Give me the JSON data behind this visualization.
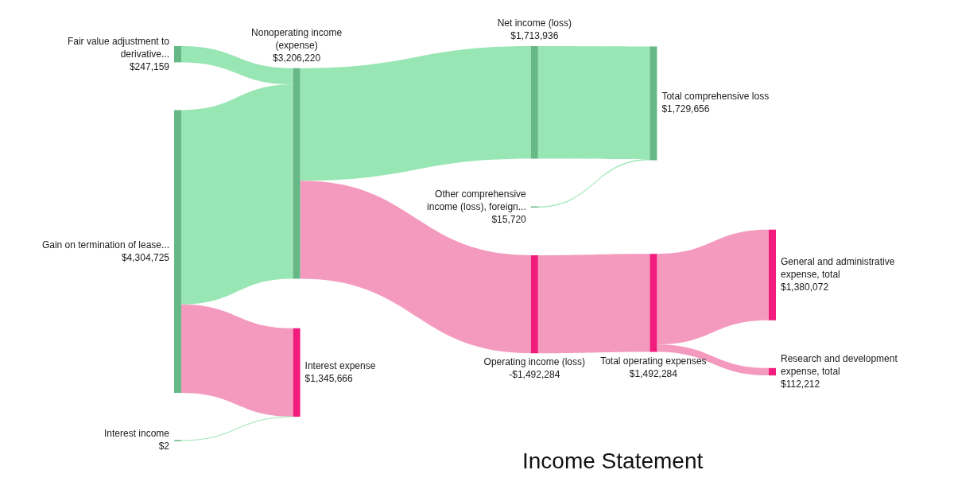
{
  "chart_data": {
    "type": "other",
    "title": "Income Statement",
    "categories": [
      "Fair value adjustment to derivative...",
      "Gain on termination of lease...",
      "Interest income",
      "Nonoperating income (expense)",
      "Interest expense",
      "Net income (loss)",
      "Other comprehensive income (loss), foreign...",
      "Operating income (loss)",
      "Total comprehensive loss",
      "Total operating expenses",
      "General and administrative expense, total",
      "Research and development expense, total"
    ],
    "values": [
      247159,
      4304725,
      2,
      3206220,
      1345666,
      1713936,
      15720,
      -1492284,
      1729656,
      1492284,
      1380072,
      112212
    ],
    "value_labels": [
      "$247,159",
      "$4,304,725",
      "$2",
      "$3,206,220",
      "$1,345,666",
      "$1,713,936",
      "$15,720",
      "-$1,492,284",
      "$1,729,656",
      "$1,492,284",
      "$1,380,072",
      "$112,212"
    ],
    "colors": [
      "#66b886",
      "#66b886",
      "#66b886",
      "#66b886",
      "#f21c7c",
      "#66b886",
      "#66b886",
      "#f21c7c",
      "#66b886",
      "#f21c7c",
      "#f21c7c",
      "#f21c7c"
    ],
    "series": [
      {
        "colors": [
          null,
          null,
          null,
          "#98e6b3",
          null,
          null,
          null,
          null,
          null,
          null,
          null,
          null
        ],
        "values": [
          null,
          null,
          null,
          null,
          null,
          null,
          null,
          null,
          null,
          null,
          null,
          null
        ]
      },
      {
        "colors": [
          null,
          null,
          null,
          "#98e6b3",
          "#f49abe",
          null,
          null,
          null,
          null,
          null,
          null,
          null
        ],
        "values": [
          null,
          null,
          null,
          null,
          null,
          null,
          null,
          null,
          null,
          null,
          null,
          null
        ]
      },
      {
        "colors": [
          null,
          null,
          null,
          null,
          "#98e6b3",
          null,
          null,
          null,
          null,
          null,
          null,
          null
        ],
        "values": [
          null,
          null,
          null,
          null,
          null,
          null,
          null,
          null,
          null,
          null,
          null,
          null
        ]
      },
      {
        "colors": [
          null,
          null,
          null,
          null,
          null,
          "#98e6b3",
          null,
          "#f49abe",
          null,
          null,
          null,
          null
        ],
        "values": [
          null,
          null,
          null,
          null,
          null,
          null,
          null,
          null,
          null,
          null,
          null,
          null
        ]
      },
      {
        "values": [
          null,
          null,
          null,
          null,
          null,
          null,
          null,
          null,
          null,
          null,
          null,
          null
        ]
      },
      {
        "colors": [
          null,
          null,
          null,
          null,
          null,
          null,
          null,
          null,
          "#98e6b3",
          null,
          null,
          null
        ],
        "values": [
          null,
          null,
          null,
          null,
          null,
          null,
          null,
          null,
          null,
          null,
          null,
          null
        ]
      },
      {
        "colors": [
          null,
          null,
          null,
          null,
          null,
          null,
          null,
          null,
          "#98e6b3",
          null,
          null,
          null
        ],
        "values": [
          null,
          null,
          null,
          null,
          null,
          null,
          null,
          null,
          null,
          null,
          null,
          null
        ]
      },
      {
        "colors": [
          null,
          null,
          null,
          null,
          null,
          null,
          null,
          null,
          null,
          "#f49abe",
          null,
          null
        ],
        "values": [
          null,
          null,
          null,
          null,
          null,
          null,
          null,
          null,
          null,
          null,
          null,
          null
        ]
      },
      {
        "values": [
          null,
          null,
          null,
          null,
          null,
          null,
          null,
          null,
          null,
          null,
          null,
          null
        ]
      },
      {
        "colors": [
          null,
          null,
          null,
          null,
          null,
          null,
          null,
          null,
          null,
          null,
          "#f49abe",
          "#f49abe"
        ],
        "values": [
          null,
          null,
          null,
          null,
          null,
          null,
          null,
          null,
          null,
          null,
          null,
          null
        ]
      },
      {
        "values": [
          null,
          null,
          null,
          null,
          null,
          null,
          null,
          null,
          null,
          null,
          null,
          null
        ]
      },
      {
        "values": [
          null,
          null,
          null,
          null,
          null,
          null,
          null,
          null,
          null,
          null,
          null,
          null
        ]
      }
    ]
  }
}
